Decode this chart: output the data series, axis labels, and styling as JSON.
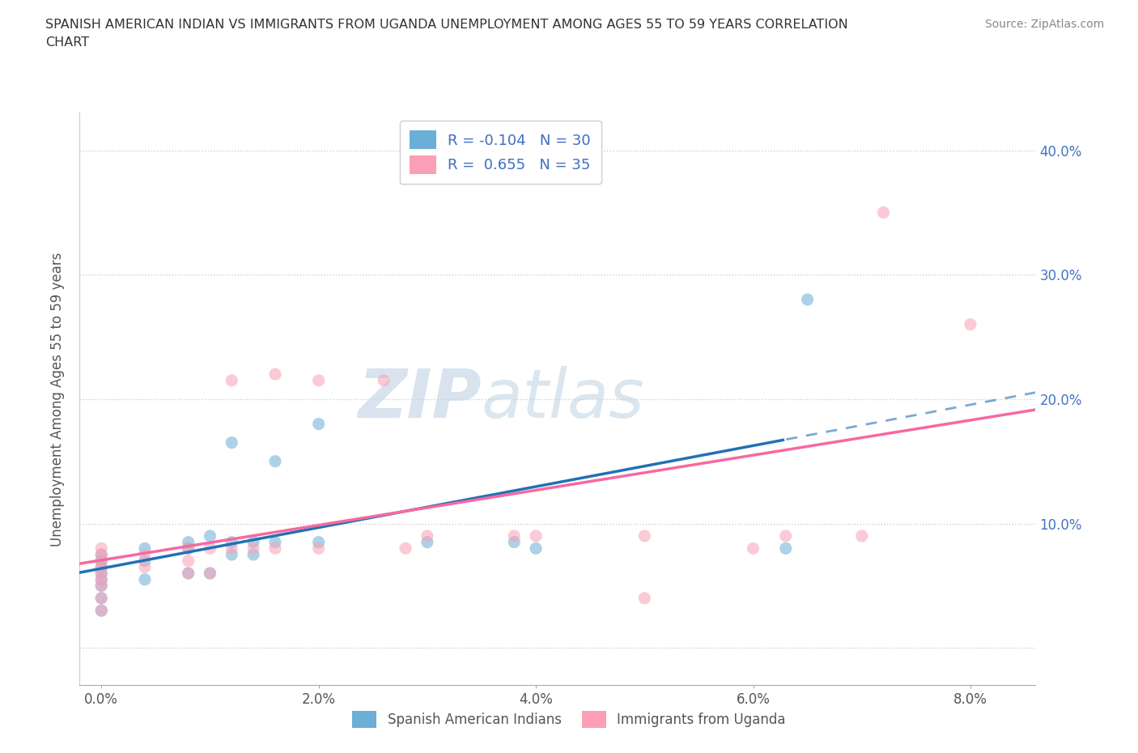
{
  "title": "SPANISH AMERICAN INDIAN VS IMMIGRANTS FROM UGANDA UNEMPLOYMENT AMONG AGES 55 TO 59 YEARS CORRELATION\nCHART",
  "source": "Source: ZipAtlas.com",
  "ylabel_label": "Unemployment Among Ages 55 to 59 years",
  "xmin": -0.002,
  "xmax": 0.086,
  "ymin": -0.03,
  "ymax": 0.43,
  "x_ticks": [
    0.0,
    0.02,
    0.04,
    0.06,
    0.08
  ],
  "x_tick_labels": [
    "0.0%",
    "2.0%",
    "4.0%",
    "6.0%",
    "8.0%"
  ],
  "y_ticks": [
    0.0,
    0.1,
    0.2,
    0.3,
    0.4
  ],
  "y_tick_labels_right": [
    "",
    "10.0%",
    "20.0%",
    "30.0%",
    "40.0%"
  ],
  "r_blue": -0.104,
  "n_blue": 30,
  "r_pink": 0.655,
  "n_pink": 35,
  "blue_color": "#6baed6",
  "pink_color": "#fa9fb5",
  "blue_line_color": "#2171b5",
  "pink_line_color": "#f768a1",
  "watermark_zip": "ZIP",
  "watermark_atlas": "atlas",
  "blue_scatter_x": [
    0.0,
    0.0,
    0.0,
    0.0,
    0.0,
    0.0,
    0.0,
    0.0,
    0.004,
    0.004,
    0.004,
    0.008,
    0.008,
    0.008,
    0.01,
    0.01,
    0.012,
    0.012,
    0.012,
    0.014,
    0.014,
    0.016,
    0.016,
    0.02,
    0.02,
    0.03,
    0.038,
    0.04,
    0.063,
    0.065
  ],
  "blue_scatter_y": [
    0.03,
    0.04,
    0.05,
    0.055,
    0.06,
    0.065,
    0.07,
    0.075,
    0.055,
    0.07,
    0.08,
    0.06,
    0.08,
    0.085,
    0.06,
    0.09,
    0.075,
    0.085,
    0.165,
    0.075,
    0.085,
    0.085,
    0.15,
    0.085,
    0.18,
    0.085,
    0.085,
    0.08,
    0.08,
    0.28
  ],
  "pink_scatter_x": [
    0.0,
    0.0,
    0.0,
    0.0,
    0.0,
    0.0,
    0.0,
    0.0,
    0.0,
    0.004,
    0.004,
    0.008,
    0.008,
    0.008,
    0.01,
    0.01,
    0.012,
    0.012,
    0.014,
    0.016,
    0.016,
    0.02,
    0.02,
    0.026,
    0.028,
    0.03,
    0.038,
    0.04,
    0.05,
    0.05,
    0.06,
    0.063,
    0.07,
    0.072,
    0.08
  ],
  "pink_scatter_y": [
    0.03,
    0.04,
    0.05,
    0.055,
    0.06,
    0.065,
    0.07,
    0.075,
    0.08,
    0.065,
    0.075,
    0.06,
    0.07,
    0.08,
    0.06,
    0.08,
    0.08,
    0.215,
    0.08,
    0.08,
    0.22,
    0.08,
    0.215,
    0.215,
    0.08,
    0.09,
    0.09,
    0.09,
    0.04,
    0.09,
    0.08,
    0.09,
    0.09,
    0.35,
    0.26
  ],
  "legend_label_blue": "Spanish American Indians",
  "legend_label_pink": "Immigrants from Uganda",
  "grid_color": "#cccccc",
  "background_color": "#ffffff",
  "blue_line_solid_end": 0.063,
  "blue_line_extend": 0.085
}
